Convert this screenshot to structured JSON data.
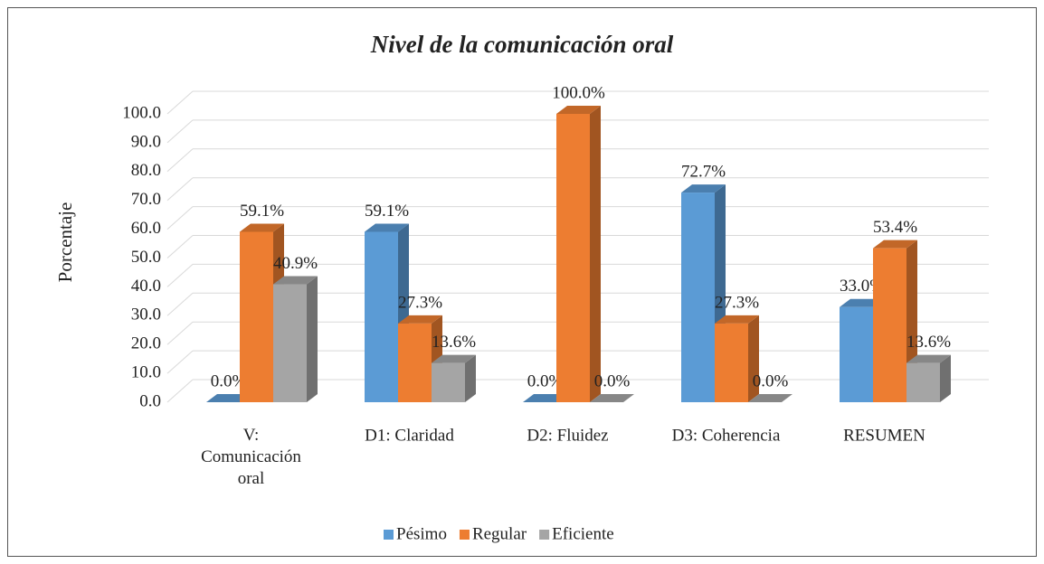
{
  "chart_data": {
    "type": "bar3d",
    "title": "Nivel de la comunicación oral",
    "y_label": "Porcentaje",
    "categories": [
      "V: Comunicación oral",
      "D1: Claridad",
      "D2: Fluidez",
      "D3: Coherencia",
      "RESUMEN"
    ],
    "series": [
      {
        "name": "Pésimo",
        "color": "#5b9bd5",
        "values": [
          0,
          59.1,
          0,
          72.7,
          33.0
        ],
        "value_labels": [
          "0.0%",
          "59.1%",
          "0.0%",
          "72.7%",
          "33.0%"
        ]
      },
      {
        "name": "Regular",
        "color": "#ed7d31",
        "values": [
          59.1,
          27.3,
          100,
          27.3,
          53.4
        ],
        "value_labels": [
          "59.1%",
          "27.3%",
          "100.0%",
          "27.3%",
          "53.4%"
        ]
      },
      {
        "name": "Eficiente",
        "color": "#a5a5a5",
        "values": [
          40.9,
          13.6,
          0,
          0,
          13.6
        ],
        "value_labels": [
          "40.9%",
          "13.6%",
          "0.0%",
          "0.0%",
          "13.6%"
        ]
      }
    ],
    "ylim": [
      0,
      100
    ],
    "yticks": [
      {
        "value": 0,
        "label": "0.0"
      },
      {
        "value": 10,
        "label": "10.0"
      },
      {
        "value": 20,
        "label": "20.0"
      },
      {
        "value": 30,
        "label": "30.0"
      },
      {
        "value": 40,
        "label": "40.0"
      },
      {
        "value": 50,
        "label": "50.0"
      },
      {
        "value": 60,
        "label": "60.0"
      },
      {
        "value": 70,
        "label": "70.0"
      },
      {
        "value": 80,
        "label": "80.0"
      },
      {
        "value": 90,
        "label": "90.0"
      },
      {
        "value": 100,
        "label": "100.0"
      }
    ],
    "grid": true,
    "legend": "bottom"
  }
}
